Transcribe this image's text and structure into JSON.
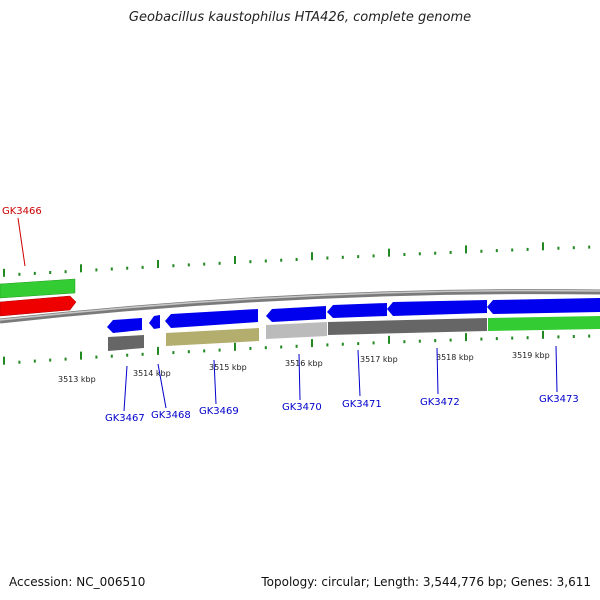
{
  "title": "Geobacillus kaustophilus HTA426, complete genome",
  "footer": {
    "accession": "Accession: NC_006510",
    "summary": "Topology: circular; Length: 3,544,776 bp; Genes: 3,611"
  },
  "colors": {
    "forward_gene": "#0000ee",
    "rna_green": "#33cc33",
    "highlight_red": "#ee0000",
    "pseudo_grey": "#666666",
    "light_grey": "#bbbbbb",
    "olive": "#b3ad6e",
    "tick_green": "#228822",
    "label_blue": "#0000cc",
    "label_red": "#cc0000"
  },
  "ruler": {
    "labels": [
      "3513 kbp",
      "3514 kbp",
      "3515 kbp",
      "3516 kbp",
      "3517 kbp",
      "3518 kbp",
      "3519 kbp"
    ]
  },
  "genes": [
    {
      "id": "GK3466",
      "label_color": "red"
    },
    {
      "id": "GK3467",
      "label_color": "blue"
    },
    {
      "id": "GK3468",
      "label_color": "blue"
    },
    {
      "id": "GK3469",
      "label_color": "blue"
    },
    {
      "id": "GK3470",
      "label_color": "blue"
    },
    {
      "id": "GK3471",
      "label_color": "blue"
    },
    {
      "id": "GK3472",
      "label_color": "blue"
    },
    {
      "id": "GK3473",
      "label_color": "blue"
    }
  ]
}
